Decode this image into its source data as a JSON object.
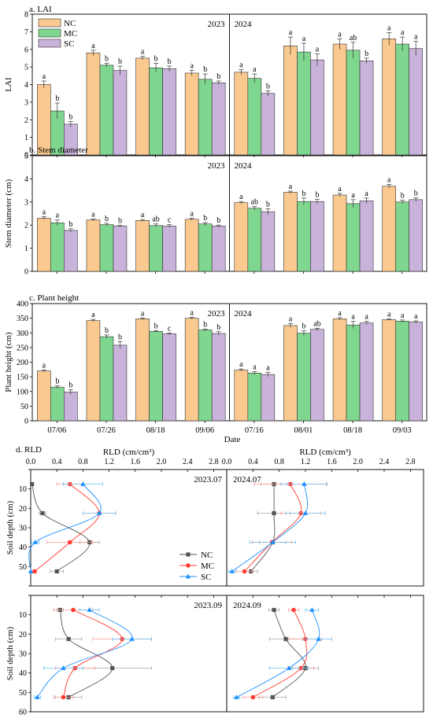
{
  "x_axis_title": "Date",
  "legend_labels": [
    "NC",
    "MC",
    "SC"
  ],
  "colors": {
    "NC_bar": "#FAC98F",
    "MC_bar": "#7FD68F",
    "SC_bar": "#C9B3DA",
    "NC_line": "#555555",
    "MC_line": "#FF3B30",
    "SC_line": "#1E90FF",
    "NC_line_light": "#A9A9A9",
    "MC_line_light": "#FF9B96",
    "SC_line_light": "#6EC3F5"
  },
  "chart_data": [
    {
      "type": "bar",
      "title": "a. LAI",
      "ylabel": "LAI",
      "ylim": [
        0,
        8
      ],
      "yticks": [
        0,
        1,
        2,
        3,
        4,
        5,
        6,
        7,
        8
      ],
      "year_labels": [
        "2023",
        "2024"
      ],
      "categories": [
        "07/06",
        "07/26",
        "08/18",
        "09/06",
        "07/16",
        "08/01",
        "08/18",
        "09/03"
      ],
      "series": [
        {
          "name": "NC",
          "values": [
            4.0,
            5.8,
            5.5,
            4.65,
            4.7,
            6.2,
            6.3,
            6.6
          ],
          "errors": [
            0.2,
            0.15,
            0.1,
            0.15,
            0.15,
            0.5,
            0.3,
            0.35
          ],
          "letters": [
            "a",
            "a",
            "a",
            "a",
            "a",
            "a",
            "a",
            "a"
          ]
        },
        {
          "name": "MC",
          "values": [
            2.5,
            5.1,
            4.95,
            4.3,
            4.35,
            5.85,
            5.95,
            6.3
          ],
          "errors": [
            0.45,
            0.1,
            0.25,
            0.3,
            0.25,
            0.5,
            0.45,
            0.4
          ],
          "letters": [
            "b",
            "b",
            "b",
            "b",
            "a",
            "a",
            "ab",
            "a"
          ]
        },
        {
          "name": "SC",
          "values": [
            1.75,
            4.8,
            4.9,
            4.1,
            3.5,
            5.4,
            5.35,
            6.05
          ],
          "errors": [
            0.15,
            0.25,
            0.15,
            0.1,
            0.15,
            0.35,
            0.15,
            0.4
          ],
          "letters": [
            "b",
            "b",
            "b",
            "b",
            "b",
            "a",
            "b",
            "a"
          ]
        }
      ],
      "legend": "top-left"
    },
    {
      "type": "bar",
      "title": "b. Stem diameter",
      "ylabel": "Stem diameter (cm)",
      "ylim": [
        0,
        5
      ],
      "yticks": [
        0,
        1,
        2,
        3,
        4,
        5
      ],
      "year_labels": [
        "2023",
        "2024"
      ],
      "categories": [
        "07/06",
        "07/26",
        "08/18",
        "09/06",
        "07/16",
        "08/01",
        "08/18",
        "09/03"
      ],
      "series": [
        {
          "name": "NC",
          "values": [
            2.3,
            2.22,
            2.2,
            2.25,
            2.97,
            3.42,
            3.3,
            3.68
          ],
          "errors": [
            0.06,
            0.04,
            0.04,
            0.04,
            0.05,
            0.05,
            0.07,
            0.08
          ],
          "letters": [
            "a",
            "a",
            "a",
            "a",
            "a",
            "a",
            "a",
            "a"
          ]
        },
        {
          "name": "MC",
          "values": [
            2.1,
            2.02,
            1.98,
            2.05,
            2.73,
            3.02,
            2.93,
            3.0
          ],
          "errors": [
            0.12,
            0.06,
            0.07,
            0.06,
            0.07,
            0.15,
            0.17,
            0.07
          ],
          "letters": [
            "a",
            "b",
            "ab",
            "b",
            "ab",
            "b",
            "a",
            "b"
          ]
        },
        {
          "name": "SC",
          "values": [
            1.77,
            1.96,
            1.96,
            1.96,
            2.58,
            3.02,
            3.05,
            3.1
          ],
          "errors": [
            0.07,
            0.03,
            0.06,
            0.04,
            0.13,
            0.1,
            0.12,
            0.08
          ],
          "letters": [
            "b",
            "b",
            "c",
            "b",
            "b",
            "b",
            "a",
            "b"
          ]
        }
      ]
    },
    {
      "type": "bar",
      "title": "c. Plant height",
      "ylabel": "Plant height (cm)",
      "ylim": [
        0,
        400
      ],
      "yticks": [
        0,
        50,
        100,
        150,
        200,
        250,
        300,
        350,
        400
      ],
      "year_labels": [
        "2023",
        "2024"
      ],
      "categories": [
        "07/06",
        "07/26",
        "08/18",
        "09/06",
        "07/16",
        "08/01",
        "08/18",
        "09/03"
      ],
      "series": [
        {
          "name": "NC",
          "values": [
            170,
            342,
            348,
            350,
            173,
            325,
            348,
            345
          ],
          "errors": [
            3,
            4,
            3,
            3,
            4,
            7,
            4,
            3
          ],
          "letters": [
            "a",
            "a",
            "a",
            "a",
            "a",
            "a",
            "a",
            "a"
          ]
        },
        {
          "name": "MC",
          "values": [
            115,
            287,
            305,
            310,
            163,
            299,
            327,
            340
          ],
          "errors": [
            5,
            6,
            3,
            3,
            5,
            8,
            12,
            4
          ],
          "letters": [
            "b",
            "b",
            "b",
            "b",
            "a",
            "b",
            "a",
            "a"
          ]
        },
        {
          "name": "SC",
          "values": [
            98,
            258,
            297,
            298,
            158,
            312,
            334,
            337
          ],
          "errors": [
            8,
            12,
            3,
            6,
            7,
            4,
            5,
            4
          ],
          "letters": [
            "b",
            "b",
            "c",
            "b",
            "a",
            "ab",
            "a",
            "a"
          ]
        }
      ]
    },
    {
      "type": "line",
      "title": "d. RLD",
      "xlabel": "RLD (cm/cm³)",
      "ylabel": "Soil depth (cm)",
      "xlim": [
        0,
        3.0
      ],
      "xticks": [
        0.0,
        0.4,
        0.8,
        1.2,
        1.6,
        2.0,
        2.4,
        2.8
      ],
      "ylim": [
        0,
        60
      ],
      "yticks": [
        10,
        20,
        30,
        40,
        50
      ],
      "legend": "right",
      "panels": [
        {
          "label": "2023.07",
          "depth": [
            7.5,
            22.5,
            37.5,
            52.5
          ],
          "series": [
            {
              "name": "NC",
              "values": [
                0.02,
                0.18,
                0.9,
                0.4
              ],
              "errors": [
                0.02,
                0.05,
                0.15,
                0.1
              ]
            },
            {
              "name": "MC",
              "values": [
                0.6,
                1.05,
                0.6,
                0.06
              ],
              "errors": [
                0.2,
                0.25,
                0.35,
                0.03
              ]
            },
            {
              "name": "SC",
              "values": [
                0.8,
                1.05,
                0.07,
                0.0
              ],
              "errors": [
                0.3,
                0.25,
                0.06,
                0.0
              ]
            }
          ]
        },
        {
          "label": "2024.07",
          "depth": [
            7.5,
            22.5,
            37.5,
            52.5
          ],
          "series": [
            {
              "name": "NC",
              "values": [
                0.72,
                0.72,
                0.7,
                0.37
              ],
              "errors": [
                0.2,
                0.25,
                0.2,
                0.1
              ]
            },
            {
              "name": "MC",
              "values": [
                0.97,
                1.13,
                0.69,
                0.27
              ],
              "errors": [
                0.55,
                0.3,
                0.3,
                0.12
              ]
            },
            {
              "name": "SC",
              "values": [
                1.18,
                1.2,
                0.7,
                0.08
              ],
              "errors": [
                0.35,
                0.3,
                0.35,
                0.05
              ]
            }
          ]
        },
        {
          "label": "2023.09",
          "depth": [
            7.5,
            22.5,
            37.5,
            52.5
          ],
          "series": [
            {
              "name": "NC",
              "values": [
                0.45,
                0.58,
                1.25,
                0.58
              ],
              "errors": [
                0.05,
                0.2,
                0.6,
                0.2
              ]
            },
            {
              "name": "MC",
              "values": [
                0.65,
                1.4,
                0.68,
                0.5
              ],
              "errors": [
                0.3,
                0.45,
                0.3,
                0.15
              ]
            },
            {
              "name": "SC",
              "values": [
                0.9,
                1.55,
                0.5,
                0.1
              ],
              "errors": [
                0.15,
                0.3,
                0.3,
                0.05
              ]
            }
          ]
        },
        {
          "label": "2024.09",
          "depth": [
            7.5,
            22.5,
            37.5,
            52.5
          ],
          "series": [
            {
              "name": "NC",
              "values": [
                0.72,
                0.9,
                1.2,
                0.7
              ],
              "errors": [
                0.08,
                0.25,
                0.2,
                0.2
              ]
            },
            {
              "name": "MC",
              "values": [
                1.02,
                1.2,
                1.13,
                0.4
              ],
              "errors": [
                0.08,
                0.25,
                0.2,
                0.15
              ]
            },
            {
              "name": "SC",
              "values": [
                1.3,
                1.4,
                0.95,
                0.15
              ],
              "errors": [
                0.1,
                0.2,
                0.3,
                0.05
              ]
            }
          ]
        }
      ]
    }
  ]
}
